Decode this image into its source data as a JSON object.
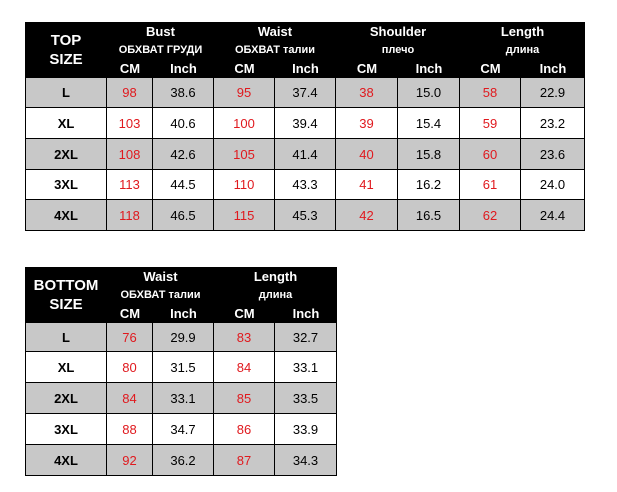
{
  "top_table": {
    "corner": [
      "TOP",
      "SIZE"
    ],
    "groups": [
      {
        "name": "Bust",
        "sub": "ОБХВАТ ГРУДИ"
      },
      {
        "name": "Waist",
        "sub": "ОБХВАТ талии"
      },
      {
        "name": "Shoulder",
        "sub": "плечо"
      },
      {
        "name": "Length",
        "sub": "длина"
      }
    ],
    "units": [
      "CM",
      "Inch",
      "CM",
      "Inch",
      "CM",
      "Inch",
      "CM",
      "Inch"
    ],
    "rows": [
      [
        "L",
        "98",
        "38.6",
        "95",
        "37.4",
        "38",
        "15.0",
        "58",
        "22.9"
      ],
      [
        "XL",
        "103",
        "40.6",
        "100",
        "39.4",
        "39",
        "15.4",
        "59",
        "23.2"
      ],
      [
        "2XL",
        "108",
        "42.6",
        "105",
        "41.4",
        "40",
        "15.8",
        "60",
        "23.6"
      ],
      [
        "3XL",
        "113",
        "44.5",
        "110",
        "43.3",
        "41",
        "16.2",
        "61",
        "24.0"
      ],
      [
        "4XL",
        "118",
        "46.5",
        "115",
        "45.3",
        "42",
        "16.5",
        "62",
        "24.4"
      ]
    ]
  },
  "bottom_table": {
    "corner": [
      "BOTTOM",
      "SIZE"
    ],
    "groups": [
      {
        "name": "Waist",
        "sub": "ОБХВАТ талии"
      },
      {
        "name": "Length",
        "sub": "длина"
      }
    ],
    "units": [
      "CM",
      "Inch",
      "CM",
      "Inch"
    ],
    "rows": [
      [
        "L",
        "76",
        "29.9",
        "83",
        "32.7"
      ],
      [
        "XL",
        "80",
        "31.5",
        "84",
        "33.1"
      ],
      [
        "2XL",
        "84",
        "33.1",
        "85",
        "33.5"
      ],
      [
        "3XL",
        "88",
        "34.7",
        "86",
        "33.9"
      ],
      [
        "4XL",
        "92",
        "36.2",
        "87",
        "34.3"
      ]
    ]
  }
}
